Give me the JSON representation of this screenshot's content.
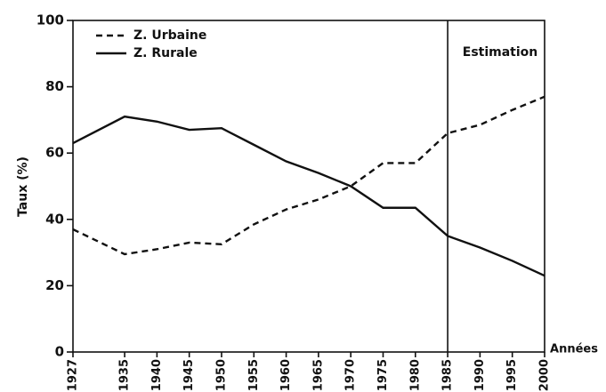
{
  "chart_data": {
    "type": "line",
    "x": [
      1927,
      1935,
      1940,
      1945,
      1950,
      1955,
      1960,
      1965,
      1970,
      1975,
      1980,
      1985,
      1990,
      1995,
      2000
    ],
    "series": [
      {
        "name": "Z. Urbaine",
        "color": "#111111",
        "dash": "dashed",
        "values": [
          37,
          29.5,
          31,
          33,
          32.5,
          38.5,
          43,
          46,
          50,
          57,
          57,
          66,
          68.5,
          73,
          77
        ]
      },
      {
        "name": "Z. Rurale",
        "color": "#111111",
        "dash": "solid",
        "values": [
          63,
          71,
          69.5,
          67,
          67.5,
          62.5,
          57.5,
          54,
          50,
          43.5,
          43.5,
          35,
          31.5,
          27.5,
          23
        ]
      }
    ],
    "xlim": [
      1927,
      2000
    ],
    "xticks": [
      1927,
      1935,
      1940,
      1945,
      1950,
      1955,
      1960,
      1965,
      1970,
      1975,
      1980,
      1985,
      1990,
      1995,
      2000
    ],
    "ylim": [
      0,
      100
    ],
    "yticks": [
      0,
      20,
      40,
      60,
      80,
      100
    ],
    "y_label": "Taux (%)",
    "x_label": "Années",
    "estimation_start": 1985,
    "estimation_label": "Estimation",
    "legend": "upper left"
  }
}
